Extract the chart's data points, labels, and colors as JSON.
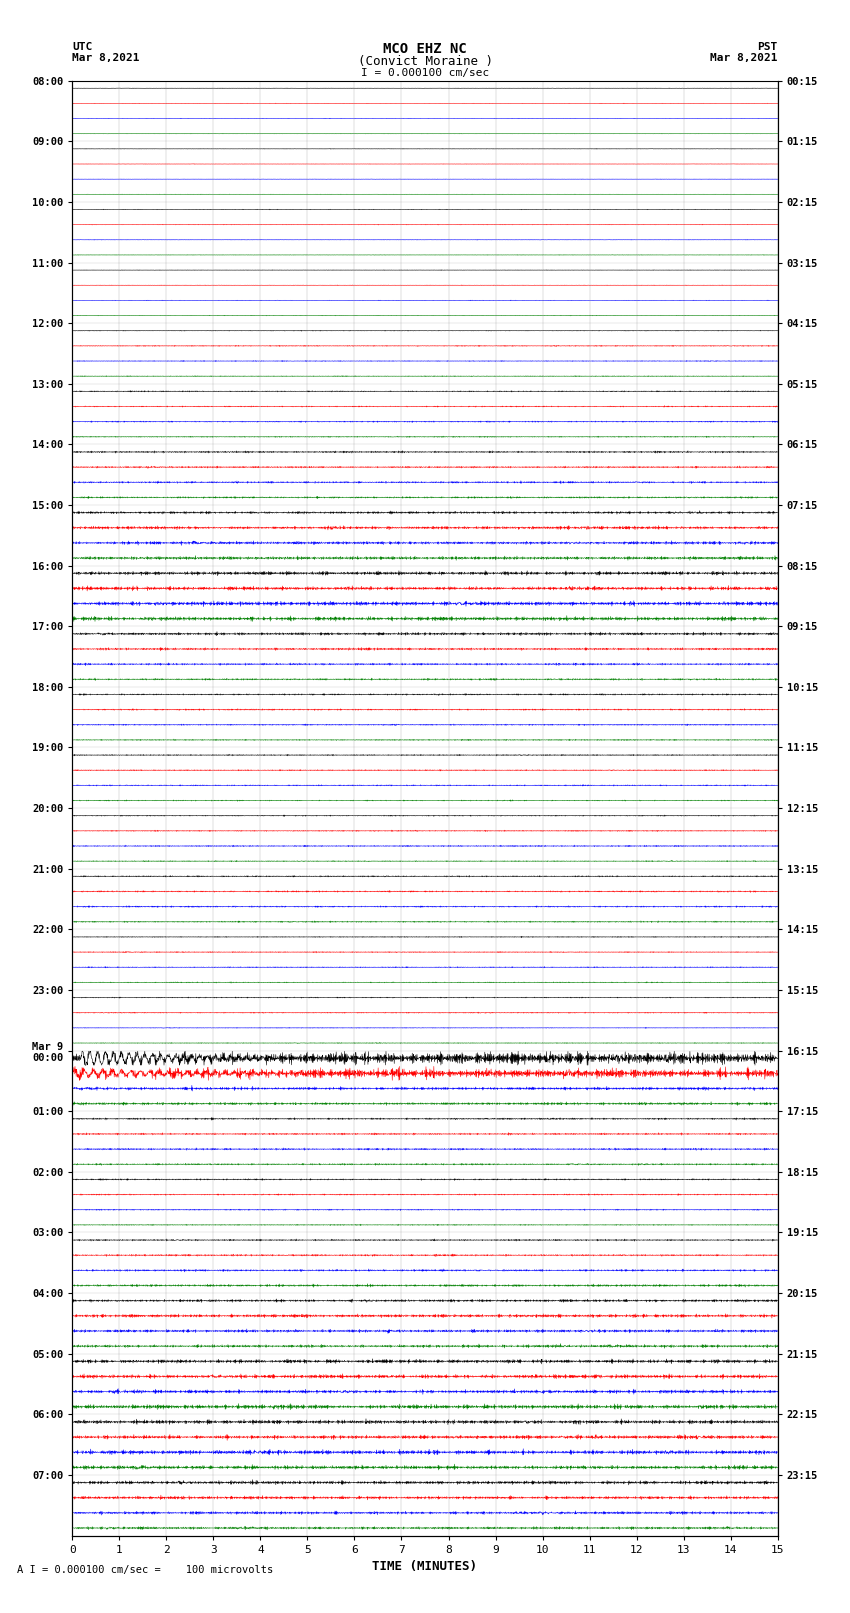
{
  "title_line1": "MCO EHZ NC",
  "title_line2": "(Convict Moraine )",
  "scale_label": "I = 0.000100 cm/sec",
  "bottom_label": "A I = 0.000100 cm/sec =    100 microvolts",
  "utc_label": "UTC",
  "utc_date": "Mar 8,2021",
  "pst_label": "PST",
  "pst_date": "Mar 8,2021",
  "xlabel": "TIME (MINUTES)",
  "left_times": [
    "08:00",
    "09:00",
    "10:00",
    "11:00",
    "12:00",
    "13:00",
    "14:00",
    "15:00",
    "16:00",
    "17:00",
    "18:00",
    "19:00",
    "20:00",
    "21:00",
    "22:00",
    "23:00",
    "Mar 9\n00:00",
    "01:00",
    "02:00",
    "03:00",
    "04:00",
    "05:00",
    "06:00",
    "07:00"
  ],
  "right_times": [
    "00:15",
    "01:15",
    "02:15",
    "03:15",
    "04:15",
    "05:15",
    "06:15",
    "07:15",
    "08:15",
    "09:15",
    "10:15",
    "11:15",
    "12:15",
    "13:15",
    "14:15",
    "15:15",
    "16:15",
    "17:15",
    "18:15",
    "19:15",
    "20:15",
    "21:15",
    "22:15",
    "23:15"
  ],
  "colors": [
    "black",
    "red",
    "blue",
    "green"
  ],
  "bg_color": "white",
  "n_rows": 96,
  "n_hour_groups": 24,
  "traces_per_hour": 4,
  "xlim": [
    0,
    15
  ],
  "xticks": [
    0,
    1,
    2,
    3,
    4,
    5,
    6,
    7,
    8,
    9,
    10,
    11,
    12,
    13,
    14,
    15
  ],
  "seed": 12345,
  "amplitude_by_row": [
    0.04,
    0.04,
    0.04,
    0.04,
    0.04,
    0.04,
    0.04,
    0.04,
    0.06,
    0.06,
    0.05,
    0.05,
    0.05,
    0.05,
    0.05,
    0.05,
    0.08,
    0.1,
    0.1,
    0.08,
    0.12,
    0.14,
    0.14,
    0.12,
    0.2,
    0.22,
    0.25,
    0.22,
    0.3,
    0.35,
    0.4,
    0.38,
    0.4,
    0.45,
    0.5,
    0.48,
    0.35,
    0.3,
    0.25,
    0.22,
    0.18,
    0.16,
    0.15,
    0.14,
    0.14,
    0.13,
    0.13,
    0.12,
    0.13,
    0.14,
    0.15,
    0.14,
    0.15,
    0.16,
    0.16,
    0.15,
    0.14,
    0.13,
    0.12,
    0.12,
    0.1,
    0.1,
    0.09,
    0.09,
    1.8,
    1.2,
    0.5,
    0.3,
    0.25,
    0.22,
    0.2,
    0.18,
    0.16,
    0.15,
    0.14,
    0.13,
    0.18,
    0.22,
    0.25,
    0.28,
    0.3,
    0.35,
    0.38,
    0.4,
    0.42,
    0.45,
    0.48,
    0.5,
    0.5,
    0.52,
    0.55,
    0.52,
    0.45,
    0.4,
    0.35,
    0.3
  ]
}
